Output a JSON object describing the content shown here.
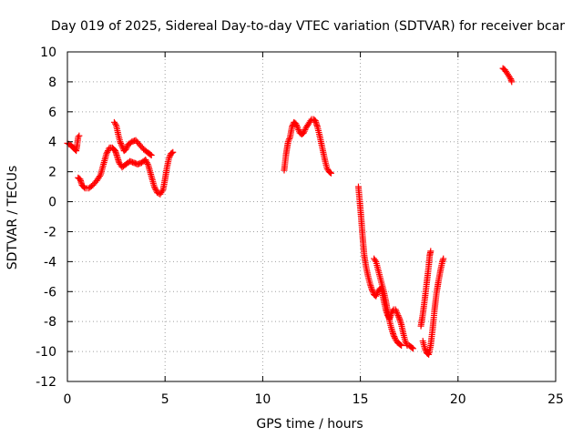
{
  "chart_data": {
    "type": "scatter",
    "title": "Day 019 of 2025, Sidereal Day-to-day VTEC variation (SDTVAR) for receiver bcar",
    "xlabel": "GPS time / hours",
    "ylabel": "SDTVAR / TECUs",
    "xlim": [
      0,
      25
    ],
    "ylim": [
      -12,
      10
    ],
    "xticks": [
      0,
      5,
      10,
      15,
      20,
      25
    ],
    "yticks": [
      -12,
      -10,
      -8,
      -6,
      -4,
      -2,
      0,
      2,
      4,
      6,
      8,
      10
    ],
    "xtick_labels": [
      "0",
      "5",
      "10",
      "15",
      "20",
      "25"
    ],
    "ytick_labels": [
      "-12",
      "-10",
      "-8",
      "-6",
      "-4",
      "-2",
      "0",
      "2",
      "4",
      "6",
      "8",
      "10"
    ],
    "grid": true,
    "marker": "plus",
    "color": "#ff0000",
    "series": [
      {
        "segments": [
          [
            [
              0.0,
              3.9
            ],
            [
              0.15,
              3.8
            ],
            [
              0.3,
              3.6
            ],
            [
              0.45,
              3.4
            ],
            [
              0.5,
              3.8
            ],
            [
              0.55,
              4.3
            ],
            [
              0.6,
              4.4
            ]
          ],
          [
            [
              0.55,
              1.6
            ],
            [
              0.65,
              1.5
            ],
            [
              0.75,
              1.1
            ],
            [
              0.9,
              0.9
            ],
            [
              1.1,
              0.9
            ],
            [
              1.3,
              1.1
            ],
            [
              1.5,
              1.4
            ],
            [
              1.7,
              1.8
            ],
            [
              1.85,
              2.5
            ],
            [
              2.0,
              3.2
            ],
            [
              2.15,
              3.6
            ],
            [
              2.3,
              3.6
            ],
            [
              2.45,
              3.4
            ],
            [
              2.55,
              3.0
            ],
            [
              2.65,
              2.6
            ],
            [
              2.8,
              2.3
            ],
            [
              3.0,
              2.5
            ],
            [
              3.2,
              2.7
            ],
            [
              3.4,
              2.6
            ],
            [
              3.6,
              2.5
            ],
            [
              3.8,
              2.6
            ],
            [
              4.0,
              2.8
            ],
            [
              4.15,
              2.4
            ],
            [
              4.3,
              1.7
            ],
            [
              4.45,
              1.0
            ],
            [
              4.6,
              0.6
            ],
            [
              4.75,
              0.5
            ],
            [
              4.9,
              0.8
            ],
            [
              5.0,
              1.5
            ],
            [
              5.1,
              2.3
            ],
            [
              5.2,
              2.9
            ],
            [
              5.3,
              3.2
            ],
            [
              5.4,
              3.3
            ]
          ],
          [
            [
              2.4,
              5.3
            ],
            [
              2.5,
              5.1
            ],
            [
              2.6,
              4.5
            ],
            [
              2.7,
              4.0
            ],
            [
              2.8,
              3.7
            ],
            [
              2.9,
              3.4
            ],
            [
              3.0,
              3.5
            ],
            [
              3.1,
              3.8
            ],
            [
              3.3,
              4.0
            ],
            [
              3.5,
              4.1
            ],
            [
              3.7,
              3.8
            ],
            [
              3.9,
              3.5
            ],
            [
              4.1,
              3.3
            ],
            [
              4.2,
              3.2
            ],
            [
              4.3,
              3.1
            ]
          ],
          [
            [
              11.1,
              2.1
            ],
            [
              11.2,
              3.2
            ],
            [
              11.3,
              4.0
            ],
            [
              11.4,
              4.3
            ],
            [
              11.5,
              5.0
            ],
            [
              11.6,
              5.3
            ],
            [
              11.7,
              5.2
            ],
            [
              11.8,
              4.9
            ],
            [
              11.9,
              4.6
            ],
            [
              12.0,
              4.5
            ],
            [
              12.1,
              4.6
            ],
            [
              12.2,
              4.9
            ],
            [
              12.3,
              5.1
            ],
            [
              12.4,
              5.3
            ],
            [
              12.5,
              5.5
            ],
            [
              12.6,
              5.5
            ],
            [
              12.7,
              5.4
            ],
            [
              12.8,
              5.0
            ],
            [
              12.9,
              4.5
            ],
            [
              13.0,
              3.9
            ],
            [
              13.1,
              3.3
            ],
            [
              13.2,
              2.7
            ],
            [
              13.3,
              2.2
            ],
            [
              13.4,
              2.0
            ],
            [
              13.5,
              1.9
            ]
          ],
          [
            [
              14.9,
              1.0
            ],
            [
              14.97,
              0.0
            ],
            [
              15.05,
              -1.2
            ],
            [
              15.12,
              -2.4
            ],
            [
              15.2,
              -3.6
            ],
            [
              15.3,
              -4.4
            ],
            [
              15.4,
              -5.0
            ],
            [
              15.5,
              -5.5
            ],
            [
              15.6,
              -5.9
            ],
            [
              15.7,
              -6.2
            ],
            [
              15.8,
              -6.3
            ],
            [
              15.9,
              -6.0
            ],
            [
              16.0,
              -5.8
            ],
            [
              16.1,
              -5.9
            ],
            [
              16.2,
              -6.6
            ],
            [
              16.3,
              -7.2
            ],
            [
              16.4,
              -7.6
            ],
            [
              16.5,
              -7.8
            ],
            [
              16.6,
              -7.4
            ],
            [
              16.7,
              -7.2
            ],
            [
              16.8,
              -7.2
            ],
            [
              16.9,
              -7.5
            ],
            [
              17.0,
              -7.8
            ],
            [
              17.1,
              -8.2
            ],
            [
              17.2,
              -8.8
            ],
            [
              17.3,
              -9.3
            ],
            [
              17.4,
              -9.6
            ],
            [
              17.5,
              -9.6
            ],
            [
              17.6,
              -9.7
            ],
            [
              17.7,
              -9.8
            ]
          ],
          [
            [
              15.7,
              -3.8
            ],
            [
              15.8,
              -4.0
            ],
            [
              15.9,
              -4.5
            ],
            [
              16.0,
              -5.0
            ],
            [
              16.1,
              -5.5
            ],
            [
              16.2,
              -6.0
            ],
            [
              16.3,
              -6.6
            ],
            [
              16.4,
              -7.3
            ],
            [
              16.5,
              -8.0
            ],
            [
              16.6,
              -8.5
            ],
            [
              16.7,
              -8.9
            ],
            [
              16.8,
              -9.2
            ],
            [
              16.9,
              -9.4
            ],
            [
              17.0,
              -9.5
            ],
            [
              17.1,
              -9.6
            ]
          ],
          [
            [
              18.1,
              -8.3
            ],
            [
              18.2,
              -7.5
            ],
            [
              18.3,
              -6.5
            ],
            [
              18.4,
              -5.4
            ],
            [
              18.5,
              -4.3
            ],
            [
              18.55,
              -3.6
            ],
            [
              18.6,
              -3.3
            ]
          ],
          [
            [
              18.2,
              -9.3
            ],
            [
              18.3,
              -9.8
            ],
            [
              18.4,
              -10.1
            ],
            [
              18.5,
              -10.2
            ],
            [
              18.6,
              -9.6
            ],
            [
              18.7,
              -8.5
            ],
            [
              18.8,
              -7.2
            ],
            [
              18.9,
              -6.1
            ],
            [
              19.0,
              -5.3
            ],
            [
              19.1,
              -4.6
            ],
            [
              19.2,
              -4.0
            ],
            [
              19.25,
              -3.8
            ]
          ],
          [
            [
              22.3,
              8.9
            ],
            [
              22.4,
              8.8
            ],
            [
              22.5,
              8.6
            ],
            [
              22.6,
              8.4
            ],
            [
              22.7,
              8.2
            ],
            [
              22.75,
              8.0
            ]
          ]
        ]
      }
    ]
  }
}
